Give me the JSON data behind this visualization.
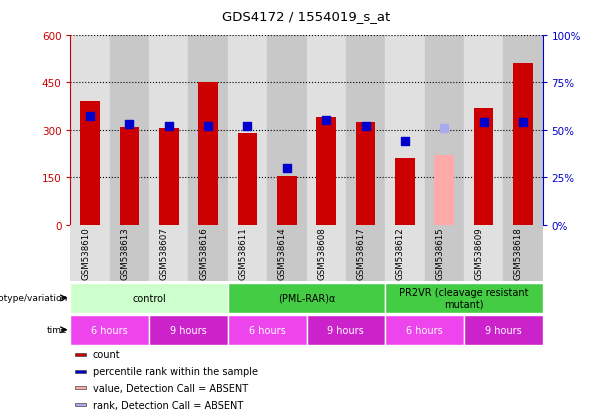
{
  "title": "GDS4172 / 1554019_s_at",
  "samples": [
    "GSM538610",
    "GSM538613",
    "GSM538607",
    "GSM538616",
    "GSM538611",
    "GSM538614",
    "GSM538608",
    "GSM538617",
    "GSM538612",
    "GSM538615",
    "GSM538609",
    "GSM538618"
  ],
  "counts": [
    390,
    310,
    305,
    450,
    290,
    155,
    340,
    325,
    210,
    220,
    370,
    510
  ],
  "absent_counts": [
    null,
    null,
    null,
    null,
    null,
    null,
    null,
    null,
    null,
    220,
    null,
    null
  ],
  "percentile_ranks": [
    57,
    53,
    52,
    52,
    52,
    30,
    55,
    52,
    44,
    51,
    54,
    54
  ],
  "absent_ranks": [
    null,
    null,
    null,
    null,
    null,
    null,
    null,
    null,
    null,
    51,
    null,
    null
  ],
  "bar_color_normal": "#cc0000",
  "bar_color_absent": "#ffaaaa",
  "dot_color_normal": "#0000cc",
  "dot_color_absent": "#aaaaee",
  "ylim_left": [
    0,
    600
  ],
  "ylim_right": [
    0,
    100
  ],
  "yticks_left": [
    0,
    150,
    300,
    450,
    600
  ],
  "yticks_right": [
    0,
    25,
    50,
    75,
    100
  ],
  "ytick_labels_left": [
    "0",
    "150",
    "300",
    "450",
    "600"
  ],
  "ytick_labels_right": [
    "0%",
    "25%",
    "50%",
    "75%",
    "100%"
  ],
  "genotype_groups": [
    {
      "label": "control",
      "start": 0,
      "end": 4,
      "color": "#ccffcc"
    },
    {
      "label": "(PML-RAR)α",
      "start": 4,
      "end": 8,
      "color": "#44cc44"
    },
    {
      "label": "PR2VR (cleavage resistant\nmutant)",
      "start": 8,
      "end": 12,
      "color": "#44cc44"
    }
  ],
  "time_groups": [
    {
      "label": "6 hours",
      "start": 0,
      "end": 2,
      "color": "#ee44ee"
    },
    {
      "label": "9 hours",
      "start": 2,
      "end": 4,
      "color": "#cc22cc"
    },
    {
      "label": "6 hours",
      "start": 4,
      "end": 6,
      "color": "#ee44ee"
    },
    {
      "label": "9 hours",
      "start": 6,
      "end": 8,
      "color": "#cc22cc"
    },
    {
      "label": "6 hours",
      "start": 8,
      "end": 10,
      "color": "#ee44ee"
    },
    {
      "label": "9 hours",
      "start": 10,
      "end": 12,
      "color": "#cc22cc"
    }
  ],
  "legend_items": [
    {
      "label": "count",
      "color": "#cc0000"
    },
    {
      "label": "percentile rank within the sample",
      "color": "#0000cc"
    },
    {
      "label": "value, Detection Call = ABSENT",
      "color": "#ffaaaa"
    },
    {
      "label": "rank, Detection Call = ABSENT",
      "color": "#aaaaee"
    }
  ],
  "left_axis_color": "#cc0000",
  "right_axis_color": "#0000cc",
  "col_colors": [
    "#e0e0e0",
    "#c8c8c8"
  ],
  "bar_width": 0.5,
  "dot_size": 30,
  "n_samples": 12
}
